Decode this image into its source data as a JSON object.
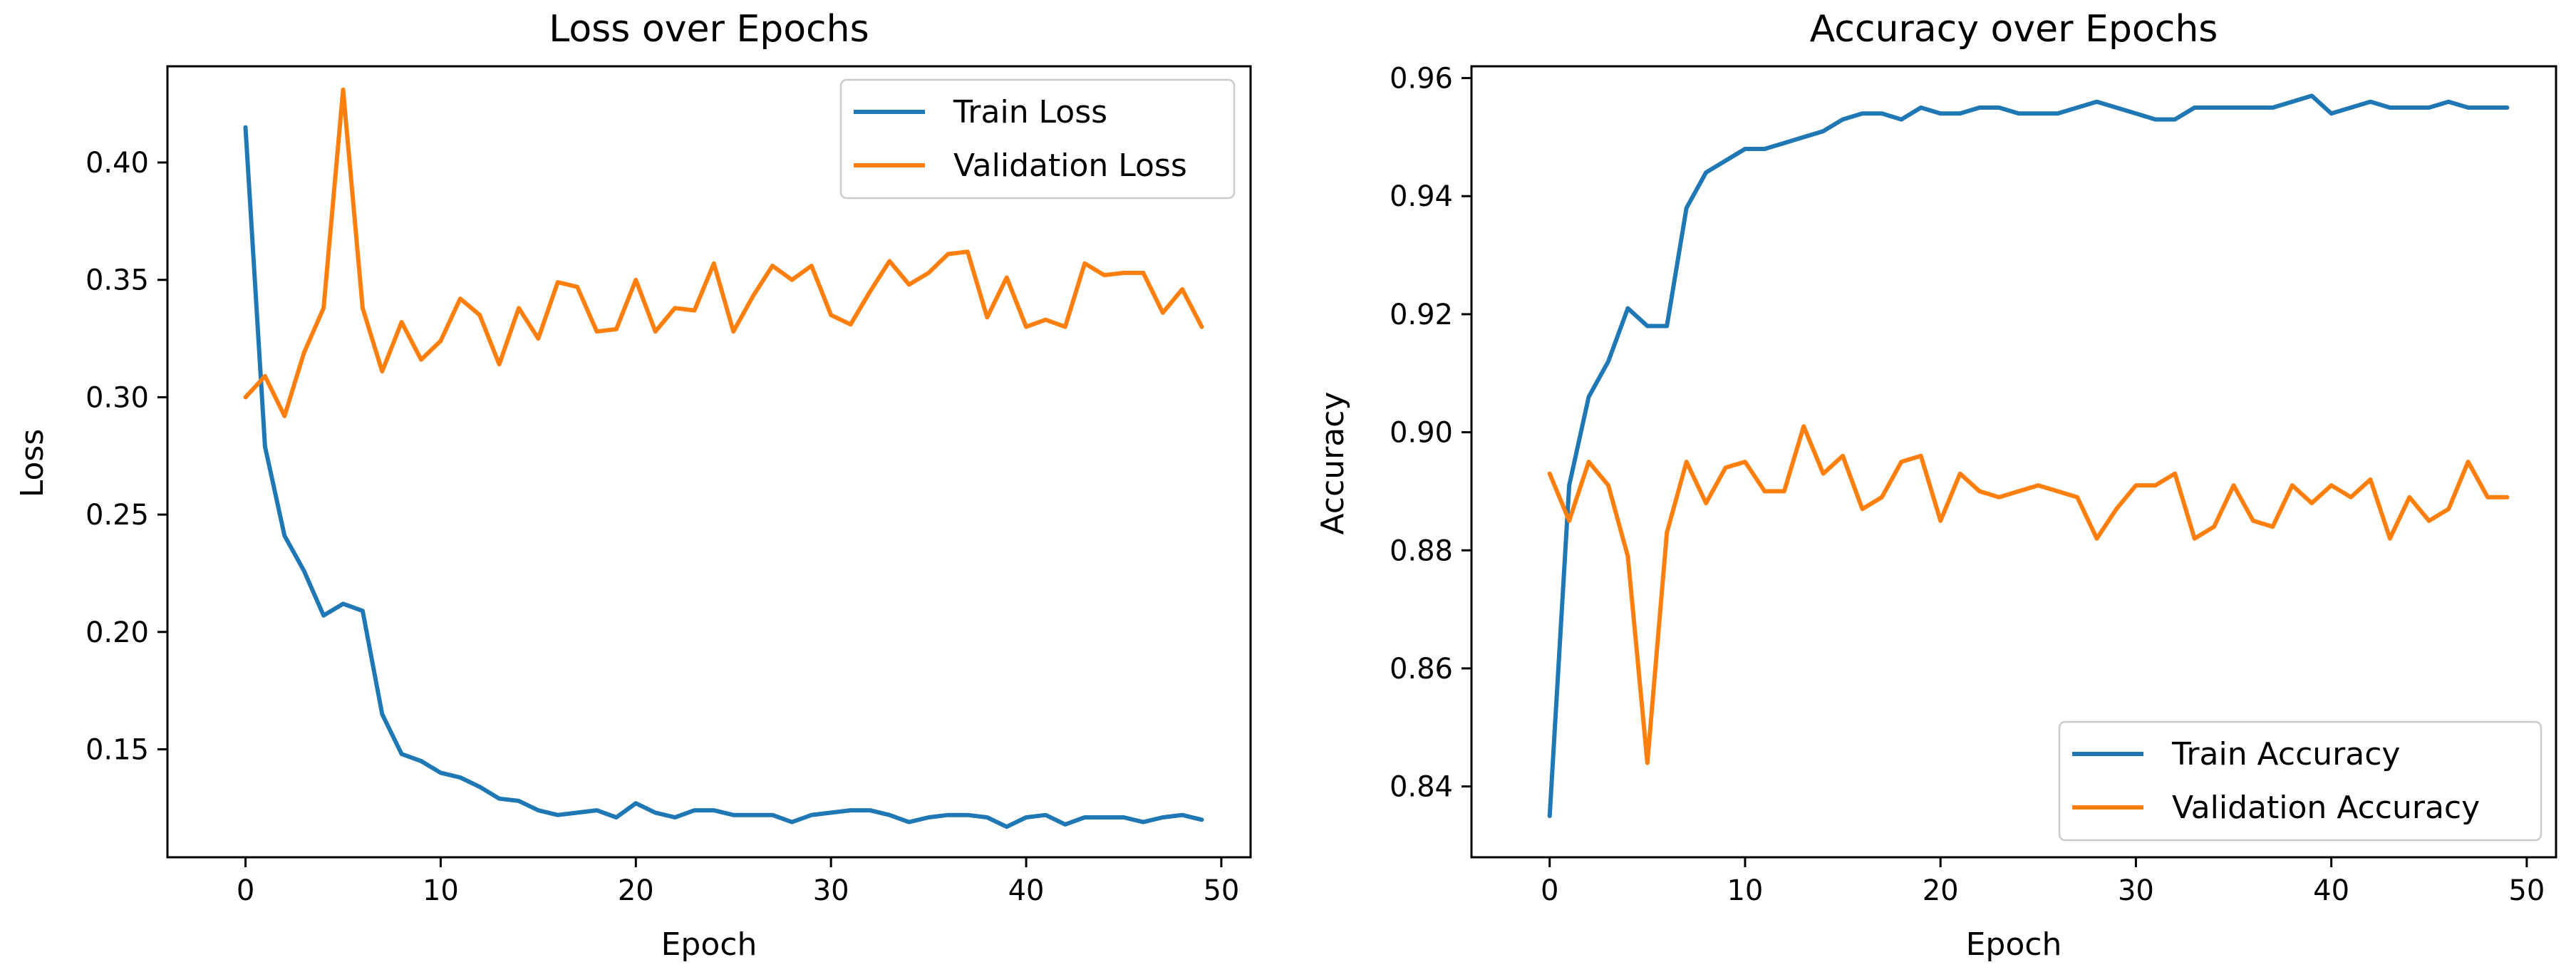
{
  "chart_data": [
    {
      "type": "line",
      "title": "Loss over Epochs",
      "xlabel": "Epoch",
      "ylabel": "Loss",
      "xlim": [
        -4,
        51.5
      ],
      "ylim": [
        0.104,
        0.441
      ],
      "xticks": [
        0,
        10,
        20,
        30,
        40,
        50
      ],
      "yticks": [
        0.15,
        0.2,
        0.25,
        0.3,
        0.35,
        0.4
      ],
      "ytick_labels": [
        "0.15",
        "0.20",
        "0.25",
        "0.30",
        "0.35",
        "0.40"
      ],
      "legend_position": "top-right",
      "series": [
        {
          "name": "Train Loss",
          "color": "#1f77b4",
          "values": [
            0.415,
            0.279,
            0.241,
            0.226,
            0.207,
            0.212,
            0.209,
            0.165,
            0.148,
            0.145,
            0.14,
            0.138,
            0.134,
            0.129,
            0.128,
            0.124,
            0.122,
            0.123,
            0.124,
            0.121,
            0.127,
            0.123,
            0.121,
            0.124,
            0.124,
            0.122,
            0.122,
            0.122,
            0.119,
            0.122,
            0.123,
            0.124,
            0.124,
            0.122,
            0.119,
            0.121,
            0.122,
            0.122,
            0.121,
            0.117,
            0.121,
            0.122,
            0.118,
            0.121,
            0.121,
            0.121,
            0.119,
            0.121,
            0.122,
            0.12
          ]
        },
        {
          "name": "Validation Loss",
          "color": "#ff7f0e",
          "values": [
            0.3,
            0.309,
            0.292,
            0.319,
            0.338,
            0.431,
            0.338,
            0.311,
            0.332,
            0.316,
            0.324,
            0.342,
            0.335,
            0.314,
            0.338,
            0.325,
            0.349,
            0.347,
            0.328,
            0.329,
            0.35,
            0.328,
            0.338,
            0.337,
            0.357,
            0.328,
            0.343,
            0.356,
            0.35,
            0.356,
            0.335,
            0.331,
            0.345,
            0.358,
            0.348,
            0.353,
            0.361,
            0.362,
            0.334,
            0.351,
            0.33,
            0.333,
            0.33,
            0.357,
            0.352,
            0.353,
            0.353,
            0.336,
            0.346,
            0.33
          ]
        }
      ]
    },
    {
      "type": "line",
      "title": "Accuracy over Epochs",
      "xlabel": "Epoch",
      "ylabel": "Accuracy",
      "xlim": [
        -4,
        51.5
      ],
      "ylim": [
        0.828,
        0.962
      ],
      "xticks": [
        0,
        10,
        20,
        30,
        40,
        50
      ],
      "yticks": [
        0.84,
        0.86,
        0.88,
        0.9,
        0.92,
        0.94,
        0.96
      ],
      "ytick_labels": [
        "0.84",
        "0.86",
        "0.88",
        "0.90",
        "0.92",
        "0.94",
        "0.96"
      ],
      "legend_position": "bottom-right",
      "series": [
        {
          "name": "Train Accuracy",
          "color": "#1f77b4",
          "values": [
            0.835,
            0.891,
            0.906,
            0.912,
            0.921,
            0.918,
            0.918,
            0.938,
            0.944,
            0.946,
            0.948,
            0.948,
            0.949,
            0.95,
            0.951,
            0.953,
            0.954,
            0.954,
            0.953,
            0.955,
            0.954,
            0.954,
            0.955,
            0.955,
            0.954,
            0.954,
            0.954,
            0.955,
            0.956,
            0.955,
            0.954,
            0.953,
            0.953,
            0.955,
            0.955,
            0.955,
            0.955,
            0.955,
            0.956,
            0.957,
            0.954,
            0.955,
            0.956,
            0.955,
            0.955,
            0.955,
            0.956,
            0.955,
            0.955,
            0.955
          ]
        },
        {
          "name": "Validation Accuracy",
          "color": "#ff7f0e",
          "values": [
            0.893,
            0.885,
            0.895,
            0.891,
            0.879,
            0.844,
            0.883,
            0.895,
            0.888,
            0.894,
            0.895,
            0.89,
            0.89,
            0.901,
            0.893,
            0.896,
            0.887,
            0.889,
            0.895,
            0.896,
            0.885,
            0.893,
            0.89,
            0.889,
            0.89,
            0.891,
            0.89,
            0.889,
            0.882,
            0.887,
            0.891,
            0.891,
            0.893,
            0.882,
            0.884,
            0.891,
            0.885,
            0.884,
            0.891,
            0.888,
            0.891,
            0.889,
            0.892,
            0.882,
            0.889,
            0.885,
            0.887,
            0.895,
            0.889,
            0.889
          ]
        }
      ]
    }
  ]
}
